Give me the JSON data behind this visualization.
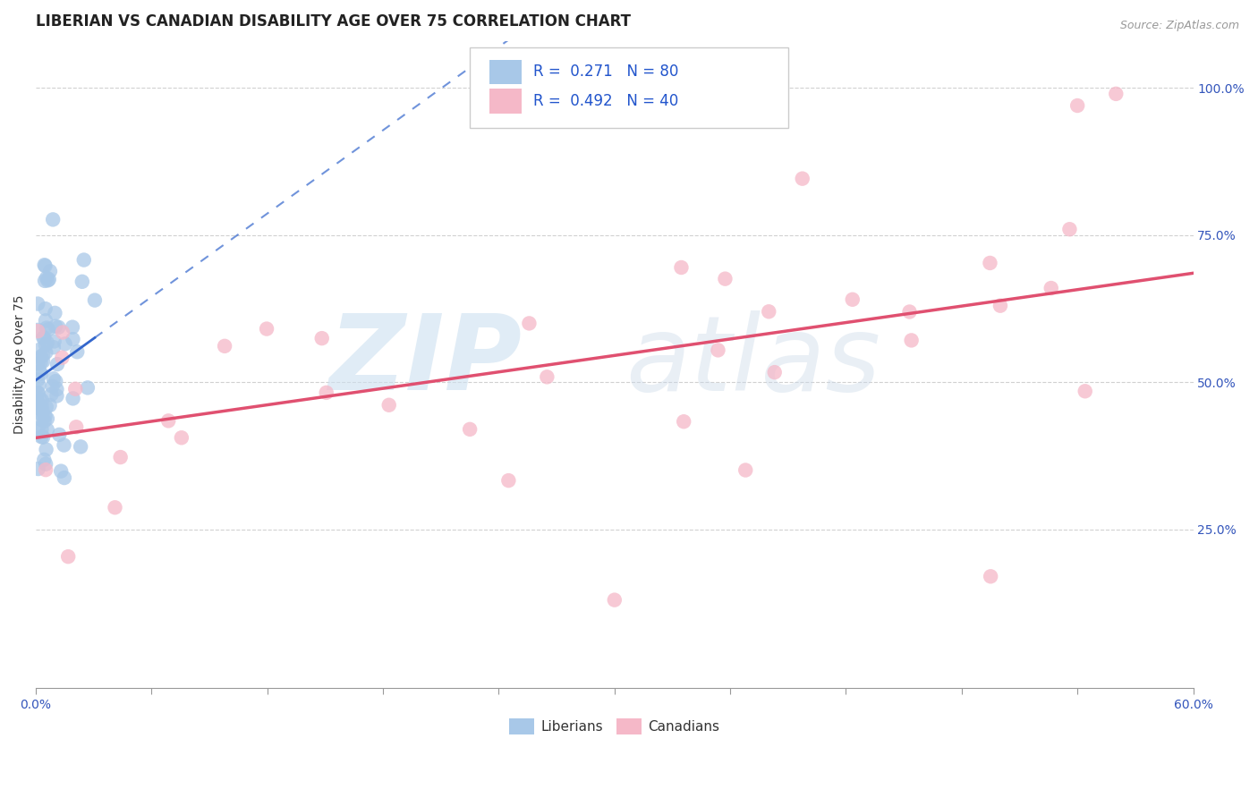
{
  "title": "LIBERIAN VS CANADIAN DISABILITY AGE OVER 75 CORRELATION CHART",
  "source": "Source: ZipAtlas.com",
  "ylabel": "Disability Age Over 75",
  "xlim": [
    0.0,
    0.6
  ],
  "ylim": [
    -0.02,
    1.08
  ],
  "legend_r1": "R =  0.271   N = 80",
  "legend_r2": "R =  0.492   N = 40",
  "blue_color": "#a8c8e8",
  "blue_line_color": "#3366cc",
  "pink_color": "#f5b8c8",
  "pink_line_color": "#e05070",
  "bg_color": "#ffffff",
  "grid_color": "#cccccc",
  "title_fontsize": 12,
  "axis_label_fontsize": 10,
  "tick_fontsize": 10
}
